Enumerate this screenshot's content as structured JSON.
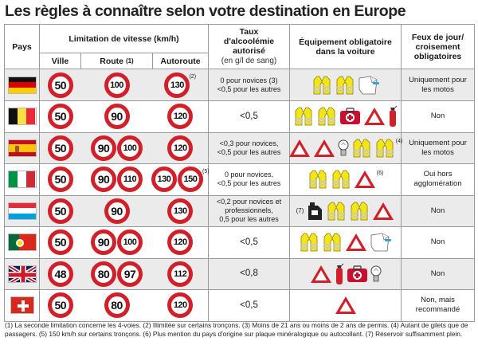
{
  "title": "Les règles à connaître selon votre destination en Europe",
  "headers": {
    "pays": "Pays",
    "vitesse": "Limitation de vitesse (km/h)",
    "ville": "Ville",
    "route": "Route",
    "route_note": "(1)",
    "autoroute": "Autoroute",
    "alcool": "Taux d'alcoolémie autorisé",
    "alcool_unit": "(en g/l de sang)",
    "equipement": "Équipement obligatoire dans la voiture",
    "feux": "Feux de jour/ croisement obligatoires"
  },
  "rows": [
    {
      "country": "germany",
      "ville": "50",
      "route": [
        "100"
      ],
      "auto": "130",
      "auto_note": "(2)",
      "alcool_lines": [
        "0 pour novices (3)",
        "<0,5 pour les autres"
      ],
      "equip": [
        "vest",
        "vest",
        "book"
      ],
      "equip_note": "",
      "feux": "Uniquement pour les motos"
    },
    {
      "country": "belgium",
      "ville": "50",
      "route": [
        "90"
      ],
      "auto": "120",
      "auto_note": "",
      "alcool_lines": [
        "<0,5"
      ],
      "equip": [
        "vest",
        "vest",
        "kit",
        "triangle",
        "extinguisher"
      ],
      "equip_note": "",
      "feux": "Non"
    },
    {
      "country": "spain",
      "ville": "50",
      "route": [
        "90",
        "100"
      ],
      "auto": "120",
      "auto_note": "",
      "alcool_lines": [
        "<0,3 pour novices,",
        "<0,5 pour les autres"
      ],
      "equip": [
        "triangle",
        "triangle",
        "bulb",
        "vest",
        "vest"
      ],
      "equip_note": "(4)",
      "feux": "Uniquement pour les motos"
    },
    {
      "country": "italy",
      "ville": "50",
      "route": [
        "90",
        "110"
      ],
      "auto": "130",
      "auto2": "150",
      "auto_note": "(5)",
      "alcool_lines": [
        "0 pour novices,",
        "<0,5 pour les autres"
      ],
      "equip": [
        "vest",
        "vest",
        "triangle"
      ],
      "equip_note": "(6)",
      "feux": "Oui hors agglomération"
    },
    {
      "country": "luxembourg",
      "ville": "50",
      "route": [
        "90"
      ],
      "auto": "130",
      "auto_note": "",
      "alcool_lines": [
        "<0,2 pour novices et",
        "professionnels,",
        "0,5 pour les autres"
      ],
      "equip": [
        "can",
        "vest",
        "vest",
        "triangle"
      ],
      "equip_note": "(7)",
      "feux": "Non"
    },
    {
      "country": "portugal",
      "ville": "50",
      "route": [
        "90",
        "100"
      ],
      "auto": "120",
      "auto_note": "",
      "alcool_lines": [
        "<0,5"
      ],
      "equip": [
        "vest",
        "vest",
        "triangle",
        "book"
      ],
      "equip_note": "",
      "feux": "Non"
    },
    {
      "country": "uk",
      "ville": "48",
      "route": [
        "80",
        "97"
      ],
      "auto": "112",
      "auto_note": "",
      "alcool_lines": [
        "<0,8"
      ],
      "equip": [
        "triangle",
        "extinguisher",
        "kit",
        "bulb"
      ],
      "equip_note": "",
      "feux": "Non"
    },
    {
      "country": "switzerland",
      "ville": "50",
      "route": [
        "80"
      ],
      "auto": "120",
      "auto_note": "",
      "alcool_lines": [
        "<0,5"
      ],
      "equip": [
        "triangle"
      ],
      "equip_note": "",
      "feux": "Non, mais recommandé"
    }
  ],
  "footnote": "(1) La seconde limitation concerne les 4-voies. (2) Illimitée sur certains tronçons. (3) Moins de 21 ans ou moins de 2 ans de permis. (4) Autant de gilets que de passagers. (5) 150 km/h sur certains tronçons. (6) Plus mention du pays d'origine sur plaque minéralogique ou autocollant. (7) Réservoir suffisamment plein.",
  "colors": {
    "sign_red": "#d2202a",
    "vest_yellow": "#f4e41a",
    "row_gray": "#ebebeb"
  }
}
